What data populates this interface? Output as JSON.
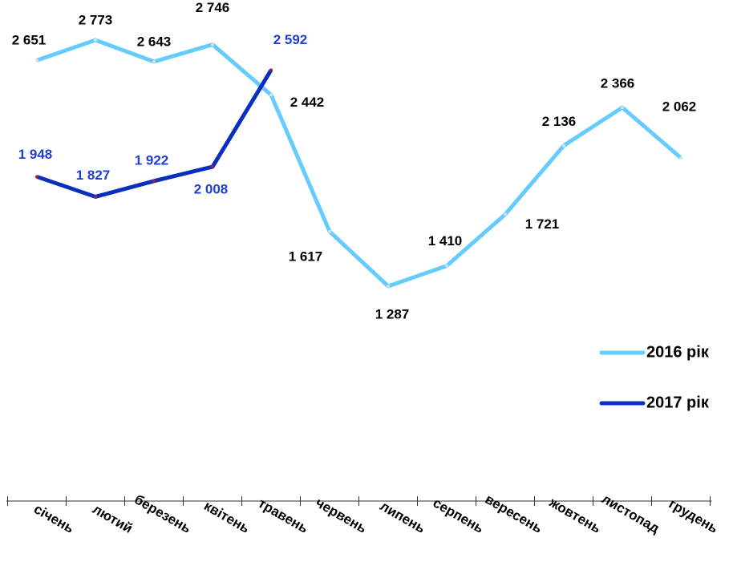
{
  "chart_data": {
    "type": "line",
    "categories": [
      "січень",
      "лютий",
      "березень",
      "квітень",
      "травень",
      "червень",
      "липень",
      "серпень",
      "вересень",
      "жовтень",
      "листопад",
      "грудень"
    ],
    "series": [
      {
        "name": "2016 рік",
        "color": "#66ccff",
        "values": [
          2651,
          2773,
          2643,
          2746,
          2442,
          1617,
          1287,
          1410,
          1721,
          2136,
          2366,
          2062
        ],
        "value_labels": [
          "2 651",
          "2 773",
          "2 643",
          "2 746",
          "2 442",
          "1 617",
          "1 287",
          "1 410",
          "1 721",
          "2 136",
          "2 366",
          "2 062"
        ]
      },
      {
        "name": "2017 рік",
        "color": "#0a2fbf",
        "values": [
          1948,
          1827,
          1922,
          2008,
          2592,
          null,
          null,
          null,
          null,
          null,
          null,
          null
        ],
        "value_labels": [
          "1 948",
          "1 827",
          "1 922",
          "2 008",
          "2 592",
          null,
          null,
          null,
          null,
          null,
          null,
          null
        ]
      }
    ],
    "legend": "right"
  }
}
